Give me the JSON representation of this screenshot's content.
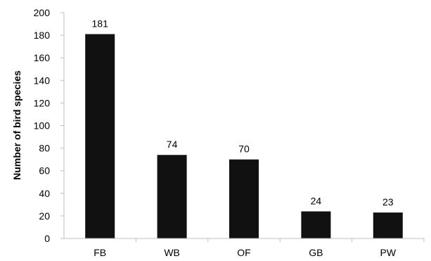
{
  "chart_data": {
    "type": "bar",
    "categories": [
      "FB",
      "WB",
      "OF",
      "GB",
      "PW"
    ],
    "values": [
      181,
      74,
      70,
      24,
      23
    ],
    "data_labels": [
      "181",
      "74",
      "70",
      "24",
      "23"
    ],
    "title": "",
    "xlabel": "",
    "ylabel": "Number of bird species",
    "ylim": [
      0,
      200
    ],
    "yticks": [
      0,
      20,
      40,
      60,
      80,
      100,
      120,
      140,
      160,
      180,
      200
    ],
    "grid": false,
    "legend": "none",
    "bar_color": "#111111",
    "axis_color": "#bfbfbf"
  }
}
